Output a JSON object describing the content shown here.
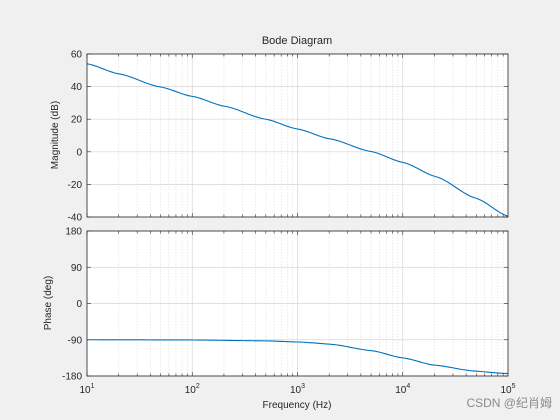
{
  "watermark": "CSDN @纪肖姆",
  "chart_data": [
    {
      "type": "line",
      "panel": "magnitude",
      "title": "Bode Diagram",
      "xlabel": "",
      "ylabel": "Magnitude (dB)",
      "xscale": "log",
      "xlim": [
        10,
        100000
      ],
      "ylim": [
        -40,
        60
      ],
      "yticks": [
        -40,
        -20,
        0,
        20,
        40,
        60
      ],
      "grid": true,
      "line_color": "#0072bd",
      "x": [
        10,
        20,
        50,
        100,
        200,
        500,
        1000,
        2000,
        5000,
        10000,
        20000,
        50000,
        100000
      ],
      "y": [
        54,
        47.8,
        39.8,
        34,
        28,
        20,
        14,
        8,
        0.2,
        -6.5,
        -15,
        -28.5,
        -39.5
      ]
    },
    {
      "type": "line",
      "panel": "phase",
      "title": "",
      "xlabel": "Frequency  (Hz)",
      "ylabel": "Phase (deg)",
      "xscale": "log",
      "xlim": [
        10,
        100000
      ],
      "ylim": [
        -180,
        180
      ],
      "yticks": [
        -180,
        -90,
        0,
        90,
        180
      ],
      "xticks": [
        {
          "base": "10",
          "exp": "1"
        },
        {
          "base": "10",
          "exp": "2"
        },
        {
          "base": "10",
          "exp": "3"
        },
        {
          "base": "10",
          "exp": "4"
        },
        {
          "base": "10",
          "exp": "5"
        }
      ],
      "grid": true,
      "line_color": "#0072bd",
      "x": [
        10,
        100,
        500,
        1000,
        2000,
        5000,
        10000,
        20000,
        50000,
        100000
      ],
      "y": [
        -90,
        -90.6,
        -92.8,
        -95.6,
        -101,
        -117,
        -135,
        -153,
        -168,
        -174
      ]
    }
  ]
}
